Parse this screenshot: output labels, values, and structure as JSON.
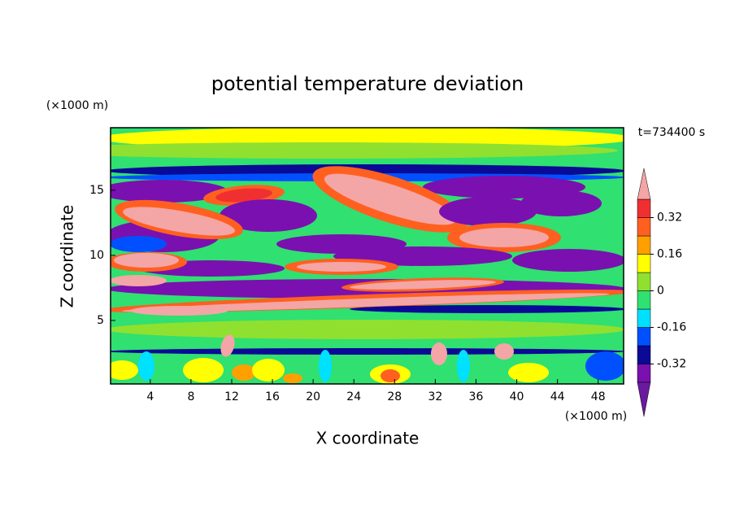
{
  "chart_data": {
    "type": "contour",
    "title": "potential temperature deviation",
    "x_label": "X coordinate",
    "y_label": "Z coordinate",
    "x_unit": "(×1000 m)",
    "y_unit": "(×1000 m)",
    "annotation": "t=734400 s",
    "xlim": [
      0.1,
      50.5
    ],
    "ylim": [
      0.125,
      19.8
    ],
    "xticks": [
      4,
      8,
      12,
      16,
      20,
      24,
      28,
      32,
      36,
      40,
      44,
      48
    ],
    "yticks": [
      5,
      10,
      15
    ],
    "colorbar": {
      "levels": [
        -0.4,
        -0.32,
        -0.24,
        -0.16,
        -0.08,
        0,
        0.08,
        0.16,
        0.24,
        0.32,
        0.4
      ],
      "colors": [
        "#6a1a9e",
        "#7a10b0",
        "#0a0a96",
        "#0050ff",
        "#00e0ff",
        "#30e070",
        "#90e030",
        "#ffff00",
        "#ffa000",
        "#ff6020",
        "#f03030",
        "#f4a5a5"
      ],
      "ticks": [
        0.32,
        0.16,
        0,
        -0.16,
        -0.32
      ]
    }
  }
}
